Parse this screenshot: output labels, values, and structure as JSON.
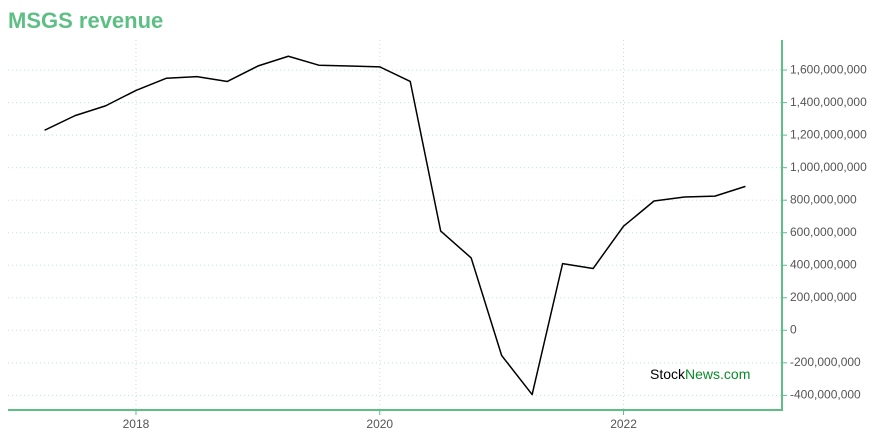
{
  "chart_data": {
    "type": "line",
    "title": "MSGS revenue",
    "x": [
      2017.25,
      2017.5,
      2017.75,
      2018.0,
      2018.25,
      2018.5,
      2018.75,
      2019.0,
      2019.25,
      2019.5,
      2019.75,
      2020.0,
      2020.25,
      2020.5,
      2020.75,
      2021.0,
      2021.25,
      2021.5,
      2021.75,
      2022.0,
      2022.25,
      2022.5,
      2022.75,
      2023.0
    ],
    "values": [
      1230000000,
      1320000000,
      1380000000,
      1475000000,
      1550000000,
      1560000000,
      1530000000,
      1625000000,
      1685000000,
      1630000000,
      1625000000,
      1620000000,
      1530000000,
      610000000,
      445000000,
      -155000000,
      -395000000,
      410000000,
      380000000,
      640000000,
      795000000,
      820000000,
      825000000,
      885000000
    ],
    "color": "#000000",
    "xlim": [
      2016.95,
      2023.3
    ],
    "xticks": [
      2018,
      2020,
      2022
    ],
    "ylim": [
      -490000000,
      1785000000
    ],
    "yticks": [
      {
        "value": -400000000,
        "label": "-400,000,000"
      },
      {
        "value": -200000000,
        "label": "-200,000,000"
      },
      0,
      {
        "value": 200000000,
        "label": "200,000,000"
      },
      {
        "value": 400000000,
        "label": "400,000,000"
      },
      {
        "value": 600000000,
        "label": "600,000,000"
      },
      {
        "value": 800000000,
        "label": "800,000,000"
      },
      {
        "value": 1000000000,
        "label": "1,000,000,000"
      },
      {
        "value": 1200000000,
        "label": "1,200,000,000"
      },
      {
        "value": 1400000000,
        "label": "1,400,000,000"
      },
      {
        "value": 1600000000,
        "label": "1,600,000,000"
      }
    ],
    "grid": true,
    "axis_color": "#5dbf84",
    "watermark": [
      "Stock",
      "News.com"
    ]
  }
}
